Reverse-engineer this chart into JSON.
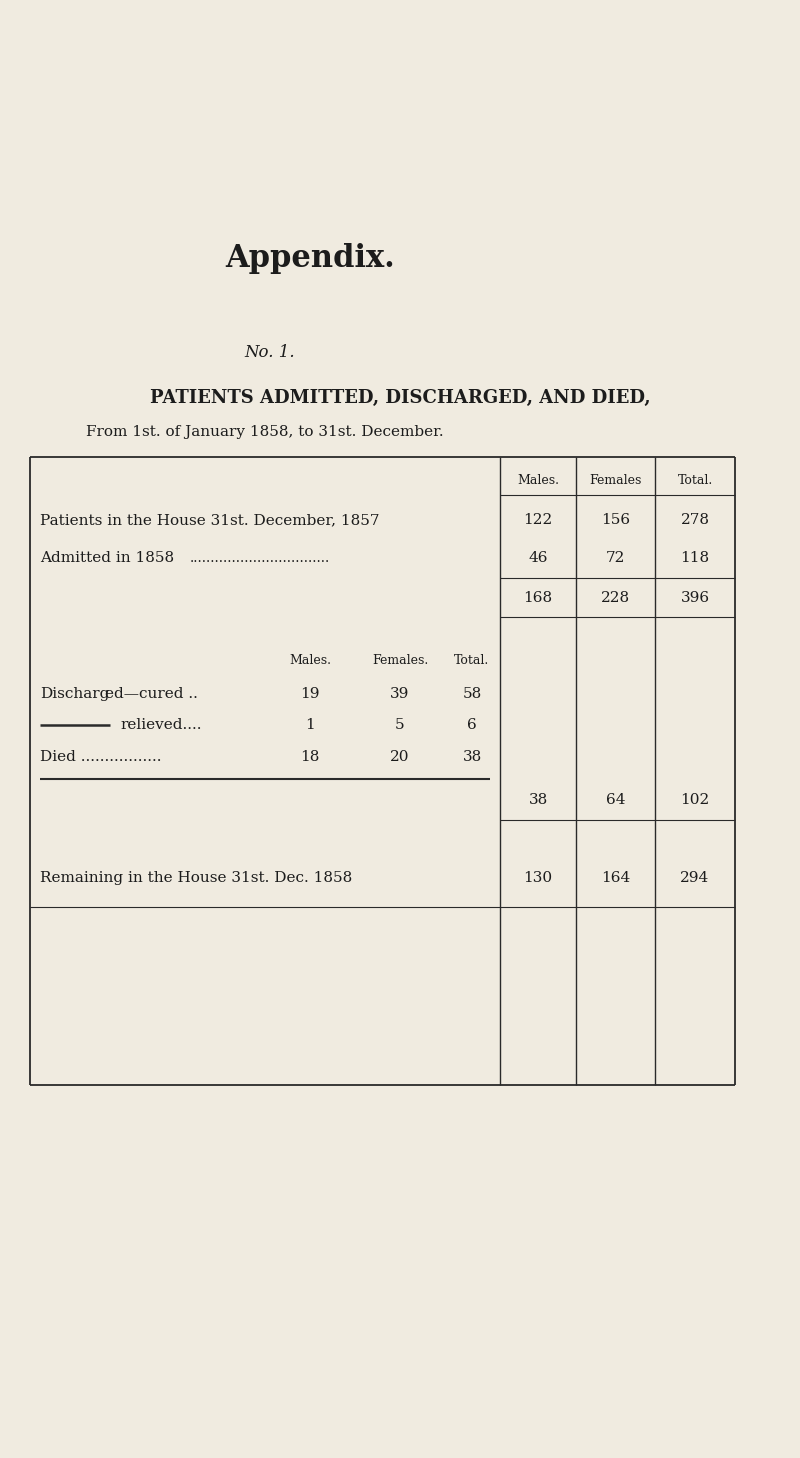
{
  "bg_color": "#f0ebe0",
  "text_color": "#1c1c1c",
  "title_blackletter": "Appendix.",
  "subtitle": "No. 1.",
  "heading": "PATIENTS ADMITTED, DISCHARGED, AND DIED,",
  "subheading": "From 1st. of January 1858, to 31st. December.",
  "col_headers": [
    "Males.",
    "Females",
    "Total."
  ],
  "table_top_rows": [
    [
      "Patients in the House 31st. December, 1857",
      "122",
      "156",
      "278"
    ],
    [
      "Admitted in 1858  ……………………………",
      "46",
      "72",
      "118"
    ]
  ],
  "subtotal_row": [
    "168",
    "228",
    "396"
  ],
  "inner_col_headers": [
    "Males.",
    "Females.",
    "Total."
  ],
  "inner_rows": [
    [
      "Discharged—cured .. 19   39   58"
    ],
    [
      "———— relieved.... 1   5   6"
    ],
    [
      "Died .............. 18   20   38"
    ]
  ],
  "inner_subtotal_row": [
    "38",
    "64",
    "102"
  ],
  "final_row": [
    "Remaining in the House 31st. Dec. 1858",
    "130",
    "164",
    "294"
  ],
  "table_border_color": "#2a2a2a",
  "admitted_dots": ".................................",
  "died_dots": "................."
}
